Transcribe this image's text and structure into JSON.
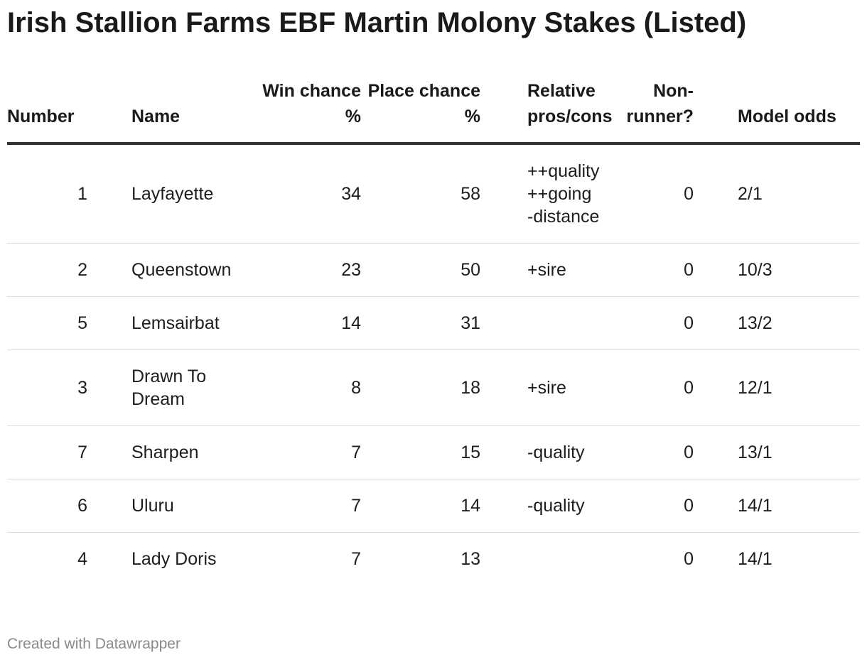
{
  "title": "Irish Stallion Farms EBF Martin Molony Stakes (Listed)",
  "footer": "Created with Datawrapper",
  "chart_data": {
    "type": "table",
    "columns": [
      "Number",
      "Name",
      "Win chance %",
      "Place chance %",
      "Relative pros/cons",
      "Non-runner?",
      "Model odds"
    ],
    "rows": [
      {
        "number": "1",
        "name": "Layfayette",
        "win": "34",
        "place": "58",
        "pros": "++quality\n++going\n-distance",
        "nonrunner": "0",
        "odds": "2/1"
      },
      {
        "number": "2",
        "name": "Queenstown",
        "win": "23",
        "place": "50",
        "pros": "+sire",
        "nonrunner": "0",
        "odds": "10/3"
      },
      {
        "number": "5",
        "name": "Lemsairbat",
        "win": "14",
        "place": "31",
        "pros": "",
        "nonrunner": "0",
        "odds": "13/2"
      },
      {
        "number": "3",
        "name": "Drawn To Dream",
        "win": "8",
        "place": "18",
        "pros": "+sire",
        "nonrunner": "0",
        "odds": "12/1"
      },
      {
        "number": "7",
        "name": "Sharpen",
        "win": "7",
        "place": "15",
        "pros": "-quality",
        "nonrunner": "0",
        "odds": "13/1"
      },
      {
        "number": "6",
        "name": "Uluru",
        "win": "7",
        "place": "14",
        "pros": "-quality",
        "nonrunner": "0",
        "odds": "14/1"
      },
      {
        "number": "4",
        "name": "Lady Doris",
        "win": "7",
        "place": "13",
        "pros": "",
        "nonrunner": "0",
        "odds": "14/1"
      }
    ]
  }
}
